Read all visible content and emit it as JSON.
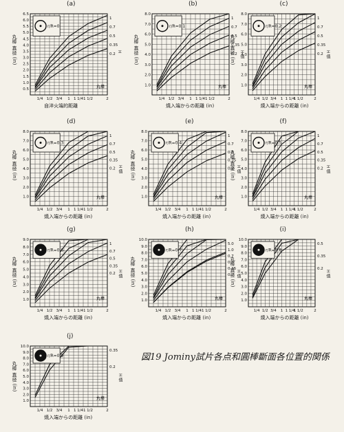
{
  "figure": {
    "caption": "図19 Jominy試片各点和圓棒斷面各位置的関係",
    "panels": [
      {
        "id": "a",
        "label": "(a)",
        "ratio_label": "r/R=0",
        "x_axis_label": "自淬火端的距離",
        "y_axis_label": "丸棒 直径 (in)",
        "h_label": "H",
        "annot": "丸棒",
        "yticks": [
          "0.5",
          "1.0",
          "1.5",
          "2.0",
          "2.5",
          "3.0",
          "3.5",
          "4.0",
          "4.5",
          "5.0",
          "5.5",
          "6.0",
          "6.5"
        ],
        "xticks": [
          "1/4",
          "1/2",
          "3/4",
          "1",
          "1 1/4",
          "1 1/2",
          "2"
        ],
        "ylim": [
          0,
          6.5
        ],
        "hvals": [
          "1",
          "0.7",
          "0.5",
          "0.35",
          "0.2"
        ]
      },
      {
        "id": "b",
        "label": "(b)",
        "ratio_label": "r/R=0.1",
        "x_axis_label": "焼入端からの距離 (in)",
        "y_axis_label": "丸棒 直径 (in)",
        "h_label": "H 值",
        "annot": "丸棒",
        "yticks": [
          "1.0",
          "2.0",
          "3.0",
          "4.0",
          "5.0",
          "6.0",
          "7.0",
          "8.0"
        ],
        "xticks": [
          "1/4",
          "1/2",
          "3/4",
          "1",
          "1 1/4",
          "1 1/2",
          "2"
        ],
        "ylim": [
          0,
          8
        ],
        "hvals": [
          "1",
          "0.7",
          "0.5",
          "0.35",
          "0.2"
        ]
      },
      {
        "id": "c",
        "label": "(c)",
        "ratio_label": "r/R=0.2",
        "x_axis_label": "焼入端からの距離 (in)",
        "y_axis_label": "丸棒 直径 (in)",
        "h_label": "H 值",
        "annot": "丸棒",
        "yticks": [
          "1.0",
          "2.0",
          "3.0",
          "4.0",
          "5.0",
          "6.0",
          "7.0",
          "8.0"
        ],
        "xticks": [
          "1/4",
          "1/2",
          "3/4",
          "1",
          "1 1/4",
          "1 1/2",
          "2"
        ],
        "ylim": [
          0,
          8
        ],
        "hvals": [
          "1",
          "0.7",
          "0.5",
          "0.35",
          "0.2"
        ]
      },
      {
        "id": "d",
        "label": "(d)",
        "ratio_label": "r/R=0.3",
        "x_axis_label": "焼入端からの距離 (in)",
        "y_axis_label": "丸棒 直径 (in)",
        "h_label": "H 值",
        "annot": "丸棒",
        "yticks": [
          "1.0",
          "2.0",
          "3.0",
          "4.0",
          "5.0",
          "6.0",
          "7.0",
          "8.0"
        ],
        "xticks": [
          "1/4",
          "1/2",
          "3/4",
          "1",
          "1 1/4",
          "1 1/2",
          "2"
        ],
        "ylim": [
          0,
          8
        ],
        "hvals": [
          "1",
          "0.7",
          "0.5",
          "0.35",
          "0.2"
        ]
      },
      {
        "id": "e",
        "label": "(e)",
        "ratio_label": "r/R=0.4",
        "x_axis_label": "焼入端からの距離 (in)",
        "y_axis_label": "丸棒 直径 (in)",
        "h_label": "H 值",
        "annot": "丸棒",
        "yticks": [
          "1.0",
          "2.0",
          "3.0",
          "4.0",
          "5.0",
          "6.0",
          "7.0",
          "8.0"
        ],
        "xticks": [
          "1/4",
          "1/2",
          "3/4",
          "1",
          "1 1/4",
          "1 1/2",
          "2"
        ],
        "ylim": [
          0,
          8
        ],
        "hvals": [
          "1",
          "0.7",
          "0.5",
          "0.35",
          "0.2"
        ]
      },
      {
        "id": "f",
        "label": "(f)",
        "ratio_label": "r/R=0.5",
        "x_axis_label": "焼入端からの距離 (in)",
        "y_axis_label": "丸棒 直径 (in)",
        "h_label": "H 值",
        "annot": "丸棒",
        "yticks": [
          "1.0",
          "2.0",
          "3.0",
          "4.0",
          "5.0",
          "6.0",
          "7.0",
          "8.0"
        ],
        "xticks": [
          "1/4",
          "1/2",
          "3/4",
          "1",
          "1 1/4",
          "1 1/2",
          "2"
        ],
        "ylim": [
          0,
          8
        ],
        "hvals": [
          "1",
          "0.7",
          "0.5",
          "0.35",
          "0.2"
        ]
      },
      {
        "id": "g",
        "label": "(g)",
        "ratio_label": "r/R=0.6",
        "x_axis_label": "焼入端からの距離 (in)",
        "y_axis_label": "丸棒 直径 (in)",
        "h_label": "H 值",
        "annot": "丸棒",
        "yticks": [
          "1.0",
          "2.0",
          "3.0",
          "4.0",
          "5.0",
          "6.0",
          "7.0",
          "8.0",
          "9.0"
        ],
        "xticks": [
          "1/4",
          "1/2",
          "3/4",
          "1",
          "1 1/4",
          "1 1/2",
          "2"
        ],
        "ylim": [
          0,
          9
        ],
        "hvals": [
          "1",
          "0.7",
          "0.5",
          "0.35",
          "0.2"
        ]
      },
      {
        "id": "h",
        "label": "(h)",
        "ratio_label": "r/R=0.7",
        "x_axis_label": "焼入端からの距離 (in)",
        "y_axis_label": "丸棒 直径 (in)",
        "h_label": "H 值",
        "annot": "丸棒",
        "yticks": [
          "1.0",
          "2.0",
          "3.0",
          "4.0",
          "5.0",
          "6.0",
          "7.0",
          "8.0",
          "9.0",
          "10.0"
        ],
        "xticks": [
          "1/4",
          "1/2",
          "3/4",
          "1",
          "1 1/4",
          "1 1/2",
          "2"
        ],
        "ylim": [
          0,
          10
        ],
        "hvals": [
          "5.0",
          "1.0",
          "0.7",
          "0.5",
          "0.35",
          "0.2"
        ]
      },
      {
        "id": "i",
        "label": "(i)",
        "ratio_label": "r/R=0.8",
        "x_axis_label": "焼入端からの距離 (in)",
        "y_axis_label": "丸棒 直径 (in)",
        "h_label": "H 值",
        "annot": "丸棒",
        "yticks": [
          "1.0",
          "2.0",
          "3.0",
          "4.0",
          "5.0",
          "6.0",
          "7.0",
          "8.0",
          "9.0",
          "10.0"
        ],
        "xticks": [
          "1/4",
          "1/2",
          "3/4",
          "1",
          "1 1/4",
          "1 1/2",
          "2"
        ],
        "ylim": [
          0,
          10
        ],
        "hvals": [
          "0.5",
          "0.35",
          "0.2"
        ]
      },
      {
        "id": "j",
        "label": "(j)",
        "ratio_label": "r/R=0.9",
        "x_axis_label": "焼入端からの距離 (in)",
        "y_axis_label": "丸棒 直径 (in)",
        "h_label": "H 值",
        "annot": "丸棒",
        "yticks": [
          "1.0",
          "2.0",
          "3.0",
          "4.0",
          "5.0",
          "6.0",
          "7.0",
          "8.0",
          "9.0",
          "10.0"
        ],
        "xticks": [
          "1/4",
          "1/2",
          "3/4",
          "1",
          "1 1/4",
          "1 1/2",
          "2"
        ],
        "ylim": [
          0,
          10
        ],
        "hvals": [
          "0.35",
          "0.2"
        ]
      }
    ]
  },
  "chart_data": {
    "type": "line",
    "title": "",
    "xlabel": "焼入端からの距離 (in)",
    "ylabel": "丸棒 直径 (in)",
    "xlim": [
      0,
      2
    ],
    "note": "Each panel shows a family of curves of round-bar diameter vs. Jominy distance for quench severities H; values estimated from gridlines.",
    "series_template": [
      {
        "name": "H=1",
        "x": [
          0.125,
          0.5,
          1.0,
          1.5,
          2.0
        ],
        "rel": [
          0.12,
          0.45,
          0.72,
          0.88,
          0.98
        ]
      },
      {
        "name": "H=0.7",
        "x": [
          0.125,
          0.5,
          1.0,
          1.5,
          2.0
        ],
        "rel": [
          0.1,
          0.4,
          0.65,
          0.81,
          0.91
        ]
      },
      {
        "name": "H=0.5",
        "x": [
          0.125,
          0.5,
          1.0,
          1.5,
          2.0
        ],
        "rel": [
          0.09,
          0.35,
          0.58,
          0.73,
          0.83
        ]
      },
      {
        "name": "H=0.35",
        "x": [
          0.125,
          0.5,
          1.0,
          1.5,
          2.0
        ],
        "rel": [
          0.07,
          0.29,
          0.5,
          0.64,
          0.74
        ]
      },
      {
        "name": "H=0.2",
        "x": [
          0.125,
          0.5,
          1.0,
          1.5,
          2.0
        ],
        "rel": [
          0.05,
          0.22,
          0.4,
          0.53,
          0.62
        ]
      }
    ]
  }
}
